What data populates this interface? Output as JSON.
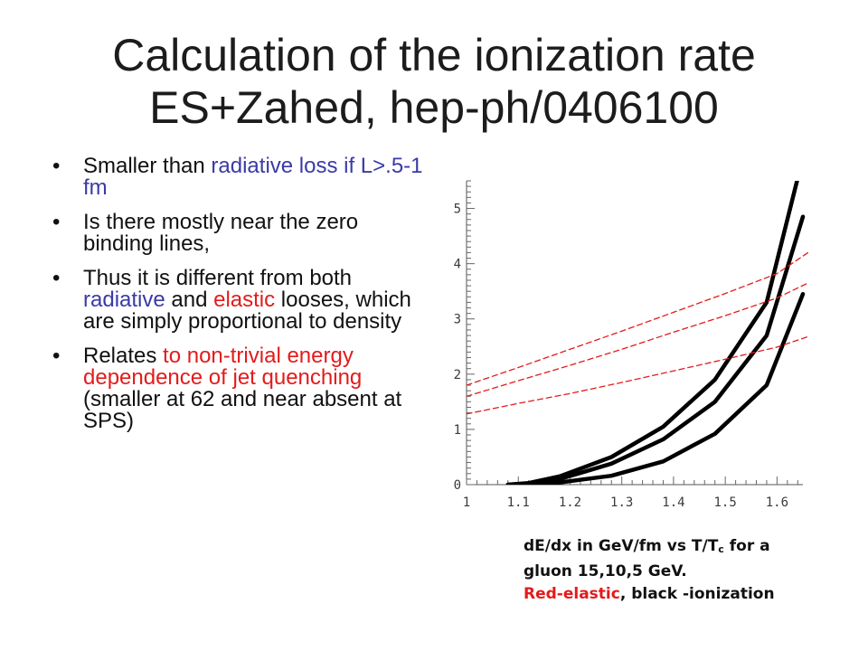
{
  "slide": {
    "title_line1": "Calculation of the ionization rate",
    "title_line2": "ES+Zahed, hep-ph/0406100",
    "bullet_glyph": "•",
    "bullets": [
      {
        "seg1": "Smaller than ",
        "seg2": "radiative loss if L>.5-1 fm"
      },
      {
        "seg1": "Is there mostly near the zero binding lines,"
      },
      {
        "seg1": "Thus it is different from both ",
        "seg2": "radiative",
        "seg3": " and ",
        "seg4": "elastic",
        "seg5": " looses, which are simply proportional to density"
      },
      {
        "seg1": "Relates ",
        "seg2": "to non-trivial energy dependence of jet quenching",
        "seg3": " (smaller at 62 and near absent at SPS)"
      }
    ],
    "caption": {
      "line1_a": "dE/dx in GeV/fm vs T/T",
      "line1_sub": "c",
      "line1_b": " for a",
      "line2": "gluon 15,10,5 GeV.",
      "line3_red": "Red-elastic",
      "line3_rest": ", black -ionization"
    },
    "colors": {
      "blue": "#3a3aa8",
      "red": "#e31b1b"
    }
  },
  "chart_data": {
    "type": "line",
    "x_ticks": [
      "1",
      "1.1",
      "1.2",
      "1.3",
      "1.4",
      "1.5",
      "1.6"
    ],
    "y_ticks": [
      "0",
      "1",
      "2",
      "3",
      "4",
      "5"
    ],
    "xlim": [
      1,
      1.65
    ],
    "ylim": [
      0,
      5.5
    ],
    "series": [
      {
        "style": "black-thick",
        "x": [
          1.08,
          1.12,
          1.18,
          1.28,
          1.38,
          1.48,
          1.58,
          1.64
        ],
        "y": [
          0.0,
          0.03,
          0.15,
          0.5,
          1.05,
          1.9,
          3.3,
          5.55
        ]
      },
      {
        "style": "black-thick",
        "x": [
          1.08,
          1.12,
          1.18,
          1.28,
          1.38,
          1.48,
          1.58,
          1.65
        ],
        "y": [
          0.0,
          0.02,
          0.1,
          0.38,
          0.82,
          1.5,
          2.7,
          4.85
        ]
      },
      {
        "style": "black-thick",
        "x": [
          1.12,
          1.18,
          1.28,
          1.38,
          1.48,
          1.58,
          1.65
        ],
        "y": [
          0.0,
          0.04,
          0.16,
          0.42,
          0.92,
          1.8,
          3.45
        ]
      },
      {
        "style": "red-dashed",
        "x": [
          1.0,
          1.1,
          1.2,
          1.3,
          1.4,
          1.5,
          1.6,
          1.66
        ],
        "y": [
          1.8,
          2.12,
          2.45,
          2.78,
          3.12,
          3.46,
          3.82,
          4.2
        ]
      },
      {
        "style": "red-dashed",
        "x": [
          1.0,
          1.1,
          1.2,
          1.3,
          1.4,
          1.5,
          1.6,
          1.66
        ],
        "y": [
          1.6,
          1.88,
          2.16,
          2.45,
          2.76,
          3.06,
          3.38,
          3.65
        ]
      },
      {
        "style": "red-dashed",
        "x": [
          1.0,
          1.1,
          1.2,
          1.3,
          1.4,
          1.5,
          1.6,
          1.66
        ],
        "y": [
          1.28,
          1.47,
          1.65,
          1.85,
          2.06,
          2.27,
          2.49,
          2.68
        ]
      }
    ]
  }
}
